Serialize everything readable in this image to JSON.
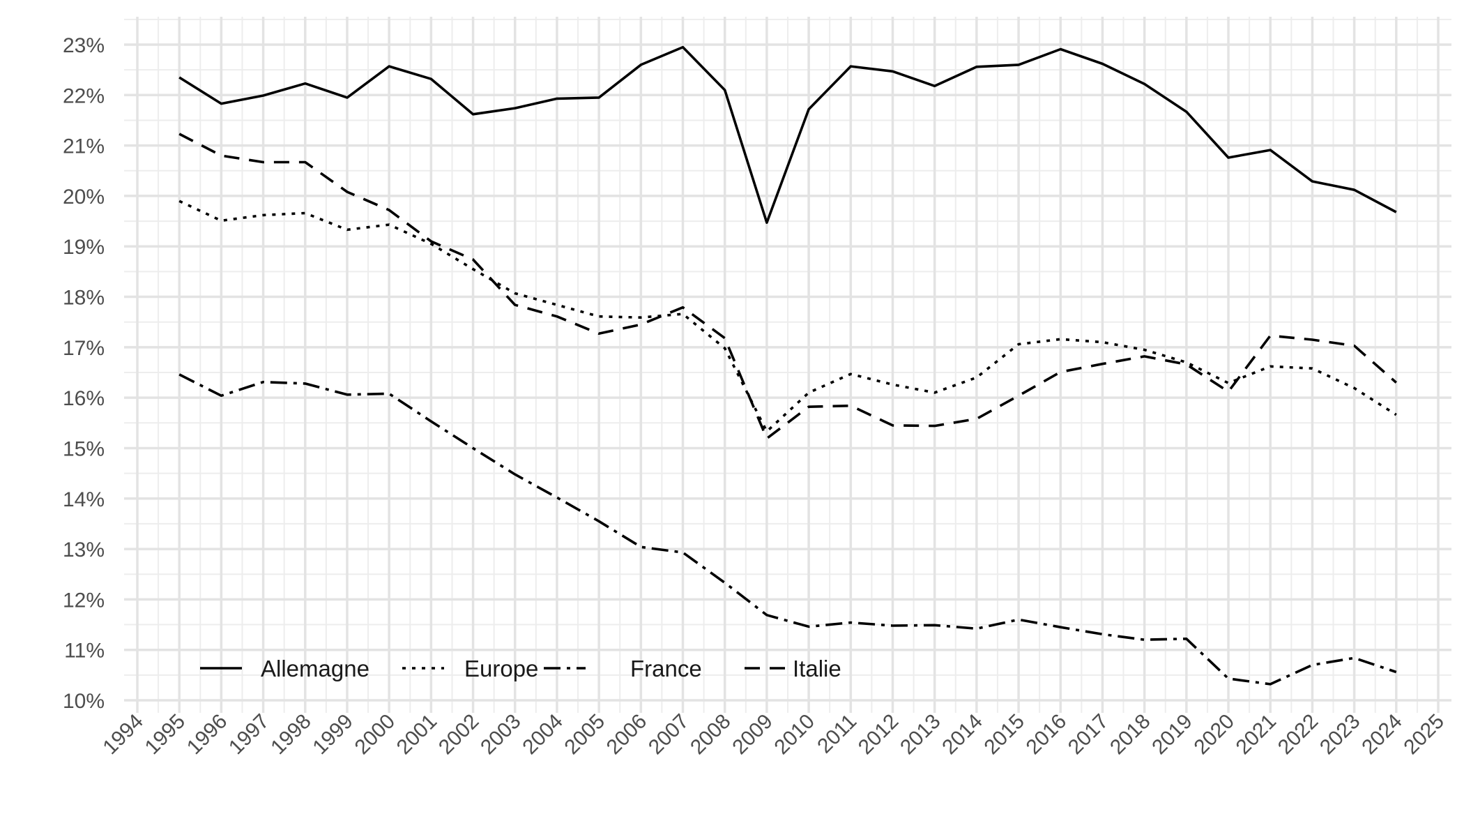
{
  "chart_data": {
    "type": "line",
    "title": "",
    "xlabel": "",
    "ylabel": "",
    "xlim": [
      1994,
      2025
    ],
    "ylim": [
      10,
      23
    ],
    "x_ticks": [
      "1994",
      "1995",
      "1996",
      "1997",
      "1998",
      "1999",
      "2000",
      "2001",
      "2002",
      "2003",
      "2004",
      "2005",
      "2006",
      "2007",
      "2008",
      "2009",
      "2010",
      "2011",
      "2012",
      "2013",
      "2014",
      "2015",
      "2016",
      "2017",
      "2018",
      "2019",
      "2020",
      "2021",
      "2022",
      "2023",
      "2024",
      "2025"
    ],
    "y_ticks": [
      "10%",
      "11%",
      "12%",
      "13%",
      "14%",
      "15%",
      "16%",
      "17%",
      "18%",
      "19%",
      "20%",
      "21%",
      "22%",
      "23%"
    ],
    "grid": true,
    "legend_position": "bottom-left",
    "x": [
      1995,
      1996,
      1997,
      1998,
      1999,
      2000,
      2001,
      2002,
      2003,
      2004,
      2005,
      2006,
      2007,
      2008,
      2009,
      2010,
      2011,
      2012,
      2013,
      2014,
      2015,
      2016,
      2017,
      2018,
      2019,
      2020,
      2021,
      2022,
      2023,
      2024
    ],
    "series": [
      {
        "name": "Allemagne",
        "dash": "solid",
        "values": [
          22.35,
          21.83,
          21.99,
          22.23,
          21.95,
          22.57,
          22.32,
          21.62,
          21.74,
          21.93,
          21.95,
          22.6,
          22.95,
          22.1,
          19.47,
          21.72,
          22.57,
          22.47,
          22.18,
          22.56,
          22.6,
          22.91,
          22.62,
          22.22,
          21.67,
          20.76,
          20.91,
          20.29,
          20.12,
          19.68
        ]
      },
      {
        "name": "Europe",
        "dash": "dotted",
        "values": [
          19.9,
          19.51,
          19.62,
          19.66,
          19.33,
          19.43,
          19.05,
          18.55,
          18.07,
          17.84,
          17.61,
          17.59,
          17.66,
          16.98,
          15.33,
          16.1,
          16.47,
          16.26,
          16.1,
          16.4,
          17.06,
          17.16,
          17.1,
          16.95,
          16.7,
          16.29,
          16.62,
          16.58,
          16.19,
          15.66
        ]
      },
      {
        "name": "France",
        "dash": "dashdot",
        "values": [
          16.46,
          16.04,
          16.31,
          16.28,
          16.06,
          16.08,
          15.53,
          15.0,
          14.48,
          14.02,
          13.55,
          13.04,
          12.93,
          12.33,
          11.69,
          11.46,
          11.54,
          11.48,
          11.49,
          11.42,
          11.6,
          11.45,
          11.31,
          11.2,
          11.22,
          10.43,
          10.32,
          10.7,
          10.84,
          10.56
        ]
      },
      {
        "name": "Italie",
        "dash": "dashed",
        "values": [
          21.23,
          20.8,
          20.67,
          20.67,
          20.08,
          19.72,
          19.1,
          18.74,
          17.84,
          17.61,
          17.27,
          17.45,
          17.79,
          17.18,
          15.19,
          15.82,
          15.84,
          15.45,
          15.44,
          15.58,
          16.04,
          16.51,
          16.67,
          16.82,
          16.66,
          16.12,
          17.23,
          17.15,
          17.03,
          16.3
        ]
      }
    ]
  }
}
